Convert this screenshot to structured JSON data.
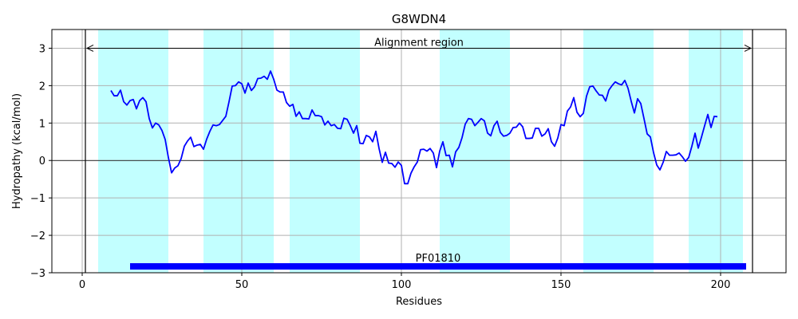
{
  "chart_data": {
    "type": "line",
    "title": "G8WDN4",
    "xlabel": "Residues",
    "ylabel": "Hydropathy (kcal/mol)",
    "xlim": [
      -9.5,
      220.5
    ],
    "ylim": [
      -3,
      3.5
    ],
    "xticks": [
      0,
      50,
      100,
      150,
      200
    ],
    "yticks": [
      -3,
      -2,
      -1,
      0,
      1,
      2,
      3
    ],
    "grid": true,
    "colors": {
      "line": "#0000ff",
      "band": "#c2ffff",
      "domain_bar": "#0000ff",
      "grid": "#b0b0b0",
      "zero_line": "#000000"
    },
    "shaded_regions": [
      [
        5,
        27
      ],
      [
        38,
        60
      ],
      [
        65,
        87
      ],
      [
        112,
        134
      ],
      [
        157,
        179
      ],
      [
        190,
        207
      ]
    ],
    "alignment_region": {
      "label": "Alignment region",
      "start": 1,
      "end": 210
    },
    "domain": {
      "label": "PF01810",
      "start": 15,
      "end": 208,
      "y": -2.83
    },
    "series": [
      {
        "x": [
          9,
          10,
          11,
          12,
          13,
          14,
          15,
          16,
          17,
          18,
          19,
          20,
          21,
          22,
          23,
          24,
          25,
          26,
          27,
          28,
          29,
          30,
          31,
          32,
          33,
          34,
          35,
          36,
          37,
          38,
          39,
          40,
          41,
          42,
          43,
          44,
          45,
          46,
          47,
          48,
          49,
          50,
          51,
          52,
          53,
          54,
          55,
          56,
          57,
          58,
          59,
          60,
          61,
          62,
          63,
          64,
          65,
          66,
          67,
          68,
          69,
          70,
          71,
          72,
          73,
          74,
          75,
          76,
          77,
          78,
          79,
          80,
          81,
          82,
          83,
          84,
          85,
          86,
          87,
          88,
          89,
          90,
          91,
          92,
          93,
          94,
          95,
          96,
          97,
          98,
          99,
          100,
          101,
          102,
          103,
          104,
          105,
          106,
          107,
          108,
          109,
          110,
          111,
          112,
          113,
          114,
          115,
          116,
          117,
          118,
          119,
          120,
          121,
          122,
          123,
          124,
          125,
          126,
          127,
          128,
          129,
          130,
          131,
          132,
          133,
          134,
          135,
          136,
          137,
          138,
          139,
          140,
          141,
          142,
          143,
          144,
          145,
          146,
          147,
          148,
          149,
          150,
          151,
          152,
          153,
          154,
          155,
          156,
          157,
          158,
          159,
          160,
          161,
          162,
          163,
          164,
          165,
          166,
          167,
          168,
          169,
          170,
          171,
          172,
          173,
          174,
          175,
          176,
          177,
          178,
          179,
          180,
          181,
          182,
          183,
          184,
          185,
          186,
          187,
          188,
          189,
          190,
          191,
          192,
          193,
          194,
          195,
          196,
          197,
          198,
          199
        ],
        "values": [
          1.87,
          1.73,
          1.73,
          1.88,
          1.57,
          1.48,
          1.6,
          1.63,
          1.38,
          1.6,
          1.68,
          1.57,
          1.12,
          0.87,
          1.0,
          0.95,
          0.8,
          0.56,
          0.08,
          -0.33,
          -0.2,
          -0.14,
          0.05,
          0.38,
          0.52,
          0.62,
          0.37,
          0.41,
          0.43,
          0.3,
          0.57,
          0.78,
          0.95,
          0.93,
          0.96,
          1.07,
          1.18,
          1.57,
          1.99,
          2.0,
          2.1,
          2.05,
          1.8,
          2.07,
          1.87,
          1.97,
          2.19,
          2.2,
          2.25,
          2.17,
          2.39,
          2.17,
          1.88,
          1.83,
          1.83,
          1.55,
          1.45,
          1.5,
          1.18,
          1.3,
          1.12,
          1.12,
          1.11,
          1.35,
          1.2,
          1.2,
          1.17,
          0.95,
          1.05,
          0.93,
          0.96,
          0.86,
          0.85,
          1.13,
          1.1,
          0.93,
          0.73,
          0.93,
          0.46,
          0.45,
          0.67,
          0.63,
          0.5,
          0.78,
          0.32,
          -0.05,
          0.22,
          -0.07,
          -0.08,
          -0.18,
          -0.04,
          -0.13,
          -0.62,
          -0.62,
          -0.34,
          -0.17,
          -0.04,
          0.29,
          0.3,
          0.25,
          0.32,
          0.2,
          -0.19,
          0.25,
          0.5,
          0.13,
          0.14,
          -0.17,
          0.23,
          0.35,
          0.61,
          0.97,
          1.12,
          1.1,
          0.93,
          1.02,
          1.12,
          1.06,
          0.73,
          0.66,
          0.93,
          1.05,
          0.75,
          0.65,
          0.67,
          0.73,
          0.88,
          0.89,
          1.0,
          0.9,
          0.59,
          0.59,
          0.6,
          0.86,
          0.86,
          0.65,
          0.71,
          0.85,
          0.5,
          0.38,
          0.6,
          0.96,
          0.93,
          1.32,
          1.43,
          1.68,
          1.29,
          1.17,
          1.26,
          1.72,
          1.97,
          1.99,
          1.86,
          1.75,
          1.74,
          1.59,
          1.88,
          2.0,
          2.1,
          2.05,
          2.02,
          2.14,
          1.93,
          1.58,
          1.27,
          1.65,
          1.52,
          1.12,
          0.71,
          0.63,
          0.21,
          -0.12,
          -0.25,
          -0.05,
          0.24,
          0.14,
          0.14,
          0.15,
          0.2,
          0.1,
          -0.02,
          0.08,
          0.38,
          0.73,
          0.33,
          0.62,
          0.93,
          1.23,
          0.88,
          1.18,
          1.17
        ]
      }
    ]
  }
}
